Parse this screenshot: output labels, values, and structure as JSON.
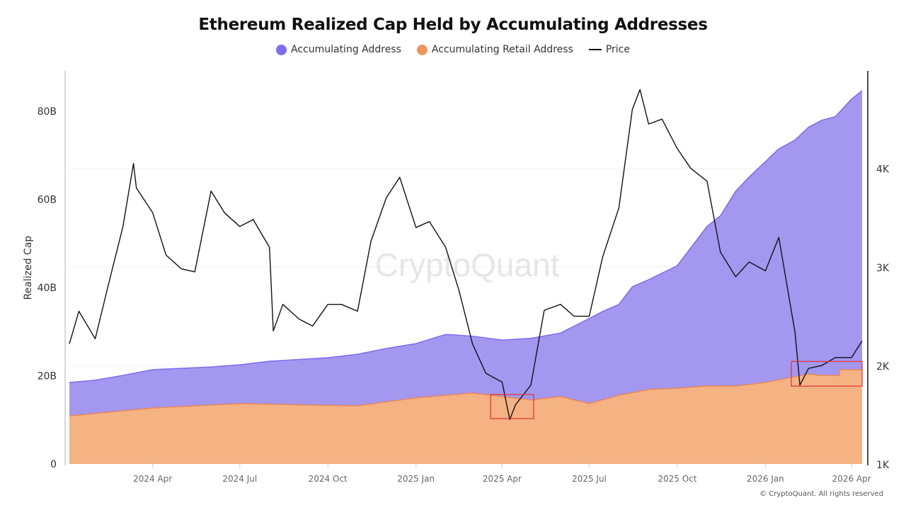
{
  "chart_data": {
    "type": "area",
    "title": "Ethereum Realized Cap Held by Accumulating Addresses",
    "ylabel": "Realized Cap",
    "ylabel_right": "",
    "xlim": [
      "2024-01-05",
      "2026-04-12"
    ],
    "ylim": [
      0,
      89.2
    ],
    "ylim_right": [
      1000,
      4990
    ],
    "y_ticks": [
      "0",
      "20B",
      "40B",
      "60B",
      "80B"
    ],
    "y_tick_values": [
      0,
      20,
      40,
      60,
      80
    ],
    "y_right_ticks": [
      "1K",
      "2K",
      "3K",
      "4K"
    ],
    "y_right_tick_values": [
      1000,
      2000,
      3000,
      4000
    ],
    "x_ticks": [
      "2024 Apr",
      "2024 Jul",
      "2024 Oct",
      "2025 Jan",
      "2025 Apr",
      "2025 Jul",
      "2025 Oct",
      "2026 Jan",
      "2026 Apr"
    ],
    "x_tick_dates": [
      "2024-04-01",
      "2024-07-01",
      "2024-10-01",
      "2025-01-01",
      "2025-04-01",
      "2025-07-01",
      "2025-10-01",
      "2026-01-01",
      "2026-04-01"
    ],
    "grid": "horizontal at right-axis ticks",
    "legend_position": "top-center",
    "watermark": "CryptoQuant",
    "series": [
      {
        "name": "Accumulating Address",
        "axis": "left",
        "unit": "B USD",
        "color": "#7b6cf0",
        "fill": "#a397f0",
        "points": [
          [
            "2024-01-05",
            18.5
          ],
          [
            "2024-02-01",
            19.0
          ],
          [
            "2024-03-01",
            20.1
          ],
          [
            "2024-04-01",
            21.4
          ],
          [
            "2024-05-01",
            21.7
          ],
          [
            "2024-06-01",
            22.0
          ],
          [
            "2024-07-01",
            22.5
          ],
          [
            "2024-08-01",
            23.3
          ],
          [
            "2024-09-01",
            23.7
          ],
          [
            "2024-10-01",
            24.1
          ],
          [
            "2024-11-01",
            24.9
          ],
          [
            "2024-12-01",
            26.2
          ],
          [
            "2025-01-01",
            27.3
          ],
          [
            "2025-02-01",
            29.4
          ],
          [
            "2025-03-01",
            29.0
          ],
          [
            "2025-04-01",
            28.1
          ],
          [
            "2025-05-01",
            28.5
          ],
          [
            "2025-06-01",
            29.7
          ],
          [
            "2025-07-01",
            33.0
          ],
          [
            "2025-07-15",
            34.6
          ],
          [
            "2025-08-01",
            36.2
          ],
          [
            "2025-08-15",
            40.2
          ],
          [
            "2025-09-01",
            41.8
          ],
          [
            "2025-10-01",
            45.0
          ],
          [
            "2025-11-01",
            53.9
          ],
          [
            "2025-11-15",
            56.3
          ],
          [
            "2025-12-01",
            61.9
          ],
          [
            "2025-12-15",
            65.1
          ],
          [
            "2026-01-01",
            68.6
          ],
          [
            "2026-01-15",
            71.5
          ],
          [
            "2026-02-01",
            73.5
          ],
          [
            "2026-02-15",
            76.4
          ],
          [
            "2026-03-01",
            78.0
          ],
          [
            "2026-03-15",
            78.8
          ],
          [
            "2026-04-01",
            82.8
          ],
          [
            "2026-04-12",
            84.7
          ]
        ]
      },
      {
        "name": "Accumulating Retail Address",
        "axis": "left",
        "unit": "B USD",
        "color": "#e8875a",
        "fill": "#f5b283",
        "points": [
          [
            "2024-01-05",
            10.9
          ],
          [
            "2024-04-01",
            12.7
          ],
          [
            "2024-07-01",
            13.7
          ],
          [
            "2024-10-01",
            13.3
          ],
          [
            "2024-11-01",
            13.2
          ],
          [
            "2024-12-01",
            14.1
          ],
          [
            "2025-01-01",
            15.0
          ],
          [
            "2025-03-01",
            16.1
          ],
          [
            "2025-04-01",
            15.3
          ],
          [
            "2025-05-01",
            14.5
          ],
          [
            "2025-06-01",
            15.3
          ],
          [
            "2025-07-01",
            13.7
          ],
          [
            "2025-08-01",
            15.6
          ],
          [
            "2025-09-01",
            16.9
          ],
          [
            "2025-10-01",
            17.2
          ],
          [
            "2025-11-01",
            17.7
          ],
          [
            "2025-12-01",
            17.7
          ],
          [
            "2026-01-01",
            18.5
          ],
          [
            "2026-02-01",
            19.8
          ],
          [
            "2026-02-15",
            20.4
          ],
          [
            "2026-03-01",
            20.1
          ],
          [
            "2026-03-19",
            20.1
          ],
          [
            "2026-03-20",
            21.4
          ],
          [
            "2026-04-12",
            21.4
          ]
        ]
      },
      {
        "name": "Price",
        "axis": "right",
        "unit": "USD",
        "color": "#111111",
        "points": [
          [
            "2024-01-05",
            2220
          ],
          [
            "2024-01-15",
            2550
          ],
          [
            "2024-02-01",
            2270
          ],
          [
            "2024-02-15",
            2830
          ],
          [
            "2024-03-01",
            3410
          ],
          [
            "2024-03-12",
            4050
          ],
          [
            "2024-03-15",
            3800
          ],
          [
            "2024-04-01",
            3550
          ],
          [
            "2024-04-15",
            3120
          ],
          [
            "2024-05-01",
            2980
          ],
          [
            "2024-05-15",
            2950
          ],
          [
            "2024-06-01",
            3770
          ],
          [
            "2024-06-15",
            3550
          ],
          [
            "2024-07-01",
            3410
          ],
          [
            "2024-07-15",
            3480
          ],
          [
            "2024-08-01",
            3200
          ],
          [
            "2024-08-05",
            2350
          ],
          [
            "2024-08-15",
            2620
          ],
          [
            "2024-09-01",
            2470
          ],
          [
            "2024-09-15",
            2400
          ],
          [
            "2024-10-01",
            2620
          ],
          [
            "2024-10-15",
            2620
          ],
          [
            "2024-11-01",
            2550
          ],
          [
            "2024-11-15",
            3260
          ],
          [
            "2024-12-01",
            3700
          ],
          [
            "2024-12-15",
            3910
          ],
          [
            "2025-01-01",
            3400
          ],
          [
            "2025-01-15",
            3460
          ],
          [
            "2025-02-01",
            3200
          ],
          [
            "2025-02-15",
            2760
          ],
          [
            "2025-03-01",
            2220
          ],
          [
            "2025-03-15",
            1920
          ],
          [
            "2025-04-01",
            1830
          ],
          [
            "2025-04-09",
            1450
          ],
          [
            "2025-04-15",
            1600
          ],
          [
            "2025-05-01",
            1800
          ],
          [
            "2025-05-15",
            2560
          ],
          [
            "2025-06-01",
            2620
          ],
          [
            "2025-06-15",
            2500
          ],
          [
            "2025-07-01",
            2500
          ],
          [
            "2025-07-15",
            3100
          ],
          [
            "2025-08-01",
            3600
          ],
          [
            "2025-08-15",
            4600
          ],
          [
            "2025-08-23",
            4800
          ],
          [
            "2025-09-01",
            4450
          ],
          [
            "2025-09-15",
            4500
          ],
          [
            "2025-10-01",
            4200
          ],
          [
            "2025-10-15",
            4000
          ],
          [
            "2025-11-01",
            3870
          ],
          [
            "2025-11-15",
            3150
          ],
          [
            "2025-12-01",
            2900
          ],
          [
            "2025-12-15",
            3050
          ],
          [
            "2026-01-01",
            2960
          ],
          [
            "2026-01-15",
            3300
          ],
          [
            "2026-02-01",
            2330
          ],
          [
            "2026-02-06",
            1800
          ],
          [
            "2026-02-15",
            1970
          ],
          [
            "2026-03-01",
            2000
          ],
          [
            "2026-03-15",
            2080
          ],
          [
            "2026-04-01",
            2080
          ],
          [
            "2026-04-12",
            2250
          ]
        ]
      }
    ],
    "annotations": [
      {
        "type": "box",
        "color": "#e0393e",
        "x": [
          "2025-03-20",
          "2025-05-04"
        ],
        "y_right": [
          1460,
          1705
        ]
      },
      {
        "type": "box",
        "color": "#e0393e",
        "x": [
          "2026-01-28",
          "2026-04-12"
        ],
        "y_right": [
          1790,
          2040
        ]
      }
    ]
  },
  "footer": "© CryptoQuant. All rights reserved"
}
